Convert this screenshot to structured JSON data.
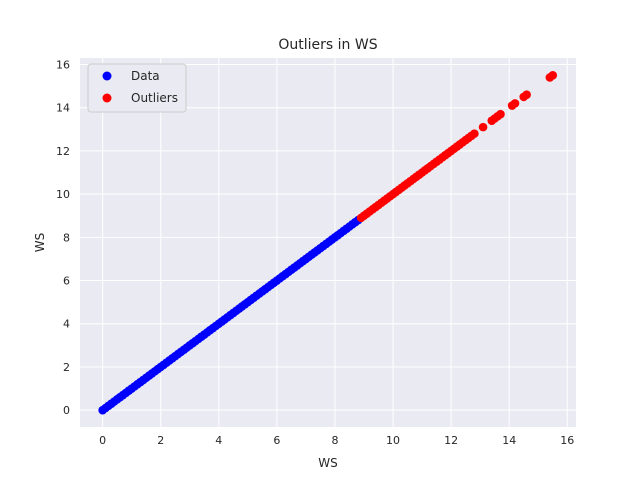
{
  "chart_data": {
    "type": "scatter",
    "title": "Outliers in WS",
    "xlabel": "WS",
    "ylabel": "WS",
    "xlim": [
      -0.78,
      16.3
    ],
    "ylim": [
      -0.78,
      16.3
    ],
    "x_ticks": [
      0,
      2,
      4,
      6,
      8,
      10,
      12,
      14,
      16
    ],
    "y_ticks": [
      0,
      2,
      4,
      6,
      8,
      10,
      12,
      14,
      16
    ],
    "grid": true,
    "legend_position": "top-left",
    "background_color": "#eaeaf2",
    "series": [
      {
        "name": "Data",
        "color": "#0000ff",
        "x": [
          0.0,
          0.1,
          0.2,
          0.3,
          0.4,
          0.5,
          0.6,
          0.7,
          0.8,
          0.9,
          1.0,
          1.1,
          1.2,
          1.3,
          1.4,
          1.5,
          1.6,
          1.7,
          1.8,
          1.9,
          2.0,
          2.1,
          2.2,
          2.3,
          2.4,
          2.5,
          2.6,
          2.7,
          2.8,
          2.9,
          3.0,
          3.1,
          3.2,
          3.3,
          3.4,
          3.5,
          3.6,
          3.7,
          3.8,
          3.9,
          4.0,
          4.1,
          4.2,
          4.3,
          4.4,
          4.5,
          4.6,
          4.7,
          4.8,
          4.9,
          5.0,
          5.1,
          5.2,
          5.3,
          5.4,
          5.5,
          5.6,
          5.7,
          5.8,
          5.9,
          6.0,
          6.1,
          6.2,
          6.3,
          6.4,
          6.5,
          6.6,
          6.7,
          6.8,
          6.9,
          7.0,
          7.1,
          7.2,
          7.3,
          7.4,
          7.5,
          7.6,
          7.7,
          7.8,
          7.9,
          8.0,
          8.1,
          8.2,
          8.3,
          8.4,
          8.5,
          8.6,
          8.7,
          8.8
        ],
        "y": [
          0.0,
          0.1,
          0.2,
          0.3,
          0.4,
          0.5,
          0.6,
          0.7,
          0.8,
          0.9,
          1.0,
          1.1,
          1.2,
          1.3,
          1.4,
          1.5,
          1.6,
          1.7,
          1.8,
          1.9,
          2.0,
          2.1,
          2.2,
          2.3,
          2.4,
          2.5,
          2.6,
          2.7,
          2.8,
          2.9,
          3.0,
          3.1,
          3.2,
          3.3,
          3.4,
          3.5,
          3.6,
          3.7,
          3.8,
          3.9,
          4.0,
          4.1,
          4.2,
          4.3,
          4.4,
          4.5,
          4.6,
          4.7,
          4.8,
          4.9,
          5.0,
          5.1,
          5.2,
          5.3,
          5.4,
          5.5,
          5.6,
          5.7,
          5.8,
          5.9,
          6.0,
          6.1,
          6.2,
          6.3,
          6.4,
          6.5,
          6.6,
          6.7,
          6.8,
          6.9,
          7.0,
          7.1,
          7.2,
          7.3,
          7.4,
          7.5,
          7.6,
          7.7,
          7.8,
          7.9,
          8.0,
          8.1,
          8.2,
          8.3,
          8.4,
          8.5,
          8.6,
          8.7,
          8.8
        ]
      },
      {
        "name": "Outliers",
        "color": "#ff0000",
        "x": [
          8.9,
          9.0,
          9.1,
          9.2,
          9.3,
          9.4,
          9.5,
          9.6,
          9.7,
          9.8,
          9.9,
          10.0,
          10.1,
          10.2,
          10.3,
          10.4,
          10.5,
          10.6,
          10.7,
          10.8,
          10.9,
          11.0,
          11.1,
          11.2,
          11.3,
          11.4,
          11.5,
          11.6,
          11.7,
          11.8,
          11.9,
          12.0,
          12.1,
          12.2,
          12.3,
          12.4,
          12.5,
          12.6,
          12.7,
          12.8,
          13.1,
          13.4,
          13.5,
          13.6,
          13.7,
          14.1,
          14.2,
          14.5,
          14.6,
          15.4,
          15.5
        ],
        "y": [
          8.9,
          9.0,
          9.1,
          9.2,
          9.3,
          9.4,
          9.5,
          9.6,
          9.7,
          9.8,
          9.9,
          10.0,
          10.1,
          10.2,
          10.3,
          10.4,
          10.5,
          10.6,
          10.7,
          10.8,
          10.9,
          11.0,
          11.1,
          11.2,
          11.3,
          11.4,
          11.5,
          11.6,
          11.7,
          11.8,
          11.9,
          12.0,
          12.1,
          12.2,
          12.3,
          12.4,
          12.5,
          12.6,
          12.7,
          12.8,
          13.1,
          13.4,
          13.5,
          13.6,
          13.7,
          14.1,
          14.2,
          14.5,
          14.6,
          15.4,
          15.5
        ]
      }
    ]
  }
}
